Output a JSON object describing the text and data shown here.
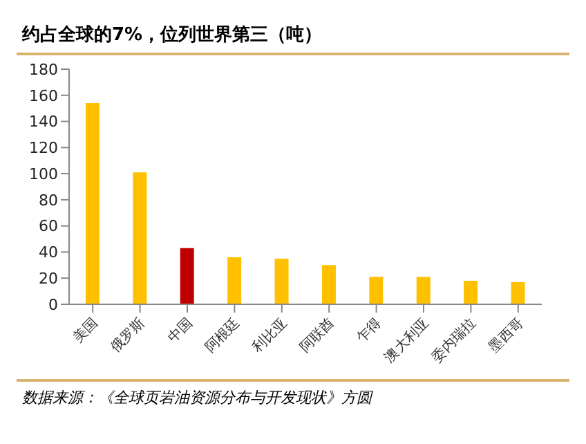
{
  "chart_data": {
    "type": "bar",
    "title": "约占全球的7%，位列世界第三（吨）",
    "categories": [
      "美国",
      "俄罗斯",
      "中国",
      "阿根廷",
      "利比亚",
      "阿联酋",
      "乍得",
      "澳大利亚",
      "委内瑞拉",
      "墨西哥"
    ],
    "values": [
      154,
      101,
      43,
      36,
      35,
      30,
      21,
      21,
      18,
      17
    ],
    "colors": [
      "#ffc000",
      "#ffc000",
      "#c00000",
      "#ffc000",
      "#ffc000",
      "#ffc000",
      "#ffc000",
      "#ffc000",
      "#ffc000",
      "#ffc000"
    ],
    "ylim": [
      0,
      180
    ],
    "yticks": [
      0,
      20,
      40,
      60,
      80,
      100,
      120,
      140,
      160,
      180
    ],
    "grid": false,
    "annotations": [
      "数据来源：《全球页岩油资源分布与开发现状》方圆"
    ]
  }
}
